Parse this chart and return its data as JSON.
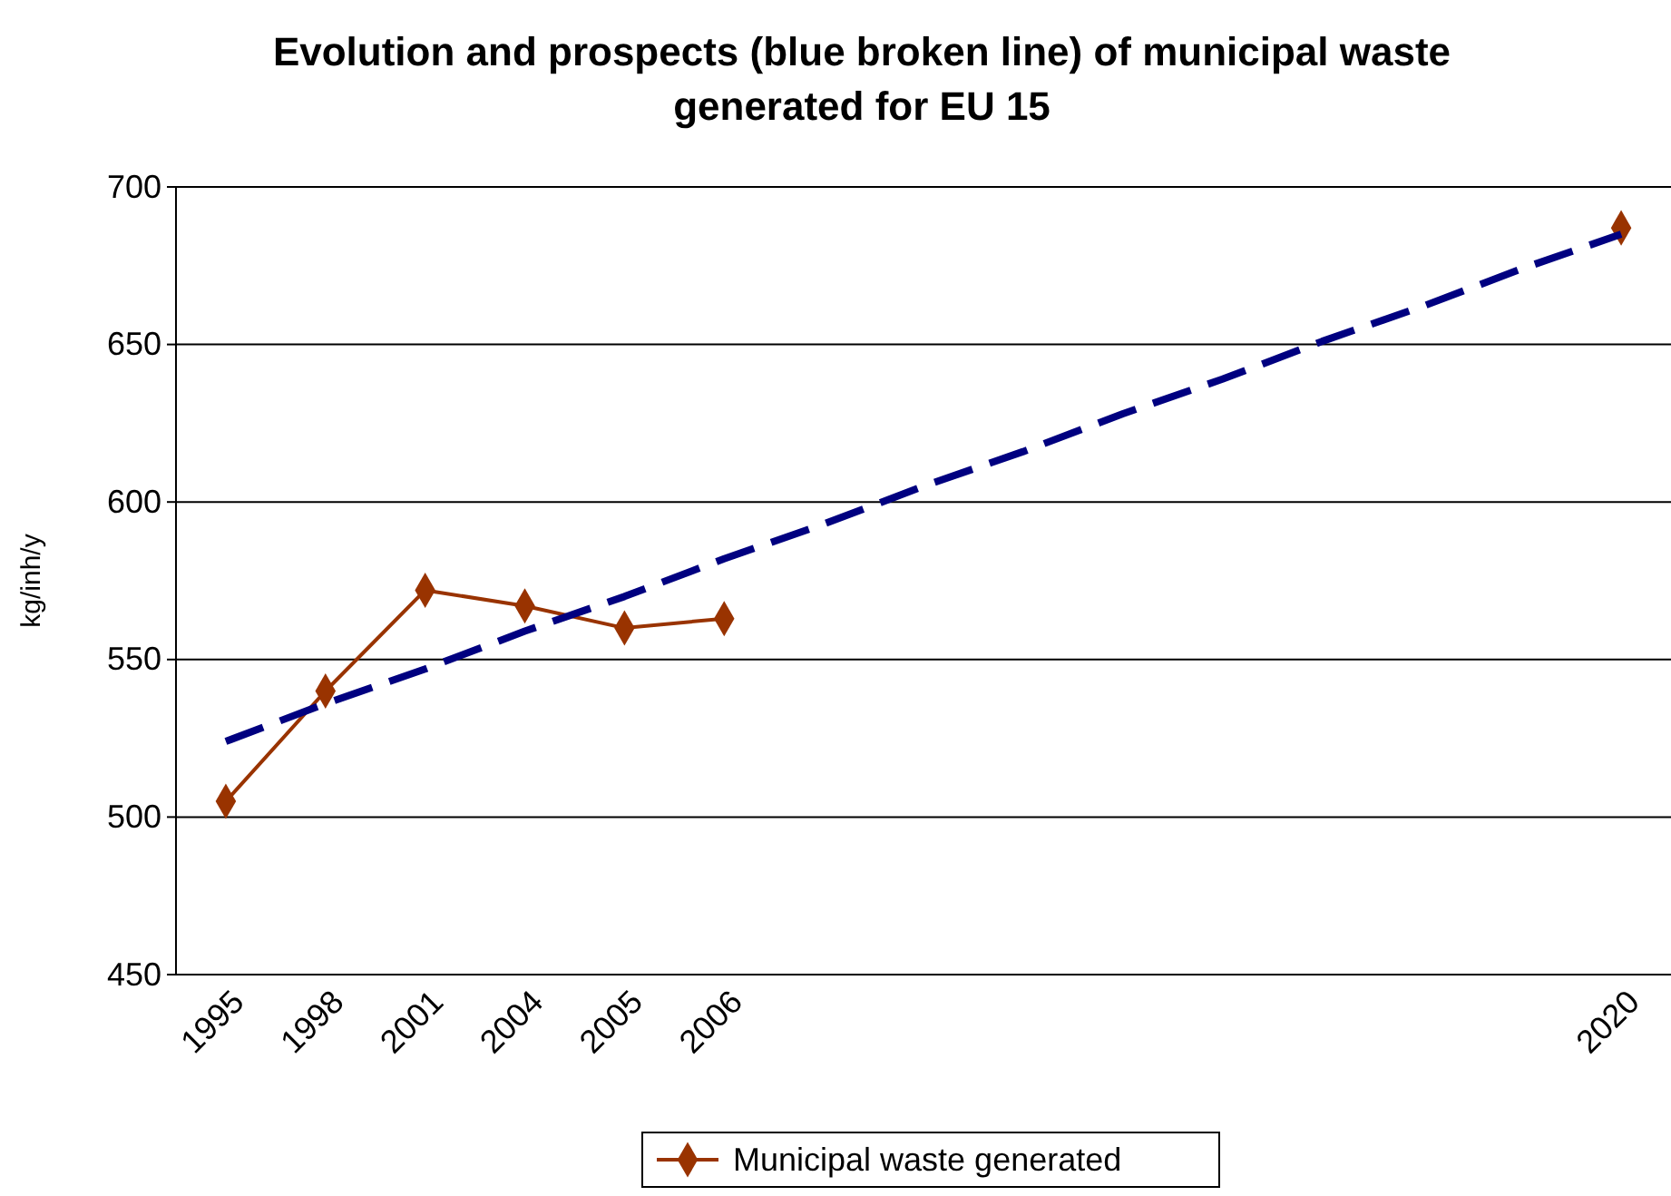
{
  "chart_data": {
    "type": "line",
    "title": "Evolution and prospects (blue broken line) of municipal waste generated for EU 15",
    "ylabel": "kg/inh/y",
    "categories": [
      "1995",
      "1998",
      "2001",
      "2004",
      "2005",
      "2006",
      null,
      null,
      null,
      null,
      null,
      null,
      null,
      null,
      "2020"
    ],
    "series": [
      {
        "name": "Municipal waste generated",
        "color": "#993300",
        "marker": "diamond",
        "line_style": "solid",
        "values": [
          505,
          540,
          572,
          567,
          560,
          563,
          null,
          null,
          null,
          null,
          null,
          null,
          null,
          null,
          687
        ]
      },
      {
        "color": "#000080",
        "marker": "none",
        "line_style": "dashed",
        "values": [
          524,
          536,
          547,
          559,
          570,
          582,
          593,
          605,
          616,
          628,
          639,
          651,
          662,
          674,
          685
        ]
      }
    ],
    "ylim": [
      450,
      700
    ],
    "yticks": [
      450,
      500,
      550,
      600,
      650,
      700
    ],
    "grid": "y",
    "legend": "bottom"
  }
}
